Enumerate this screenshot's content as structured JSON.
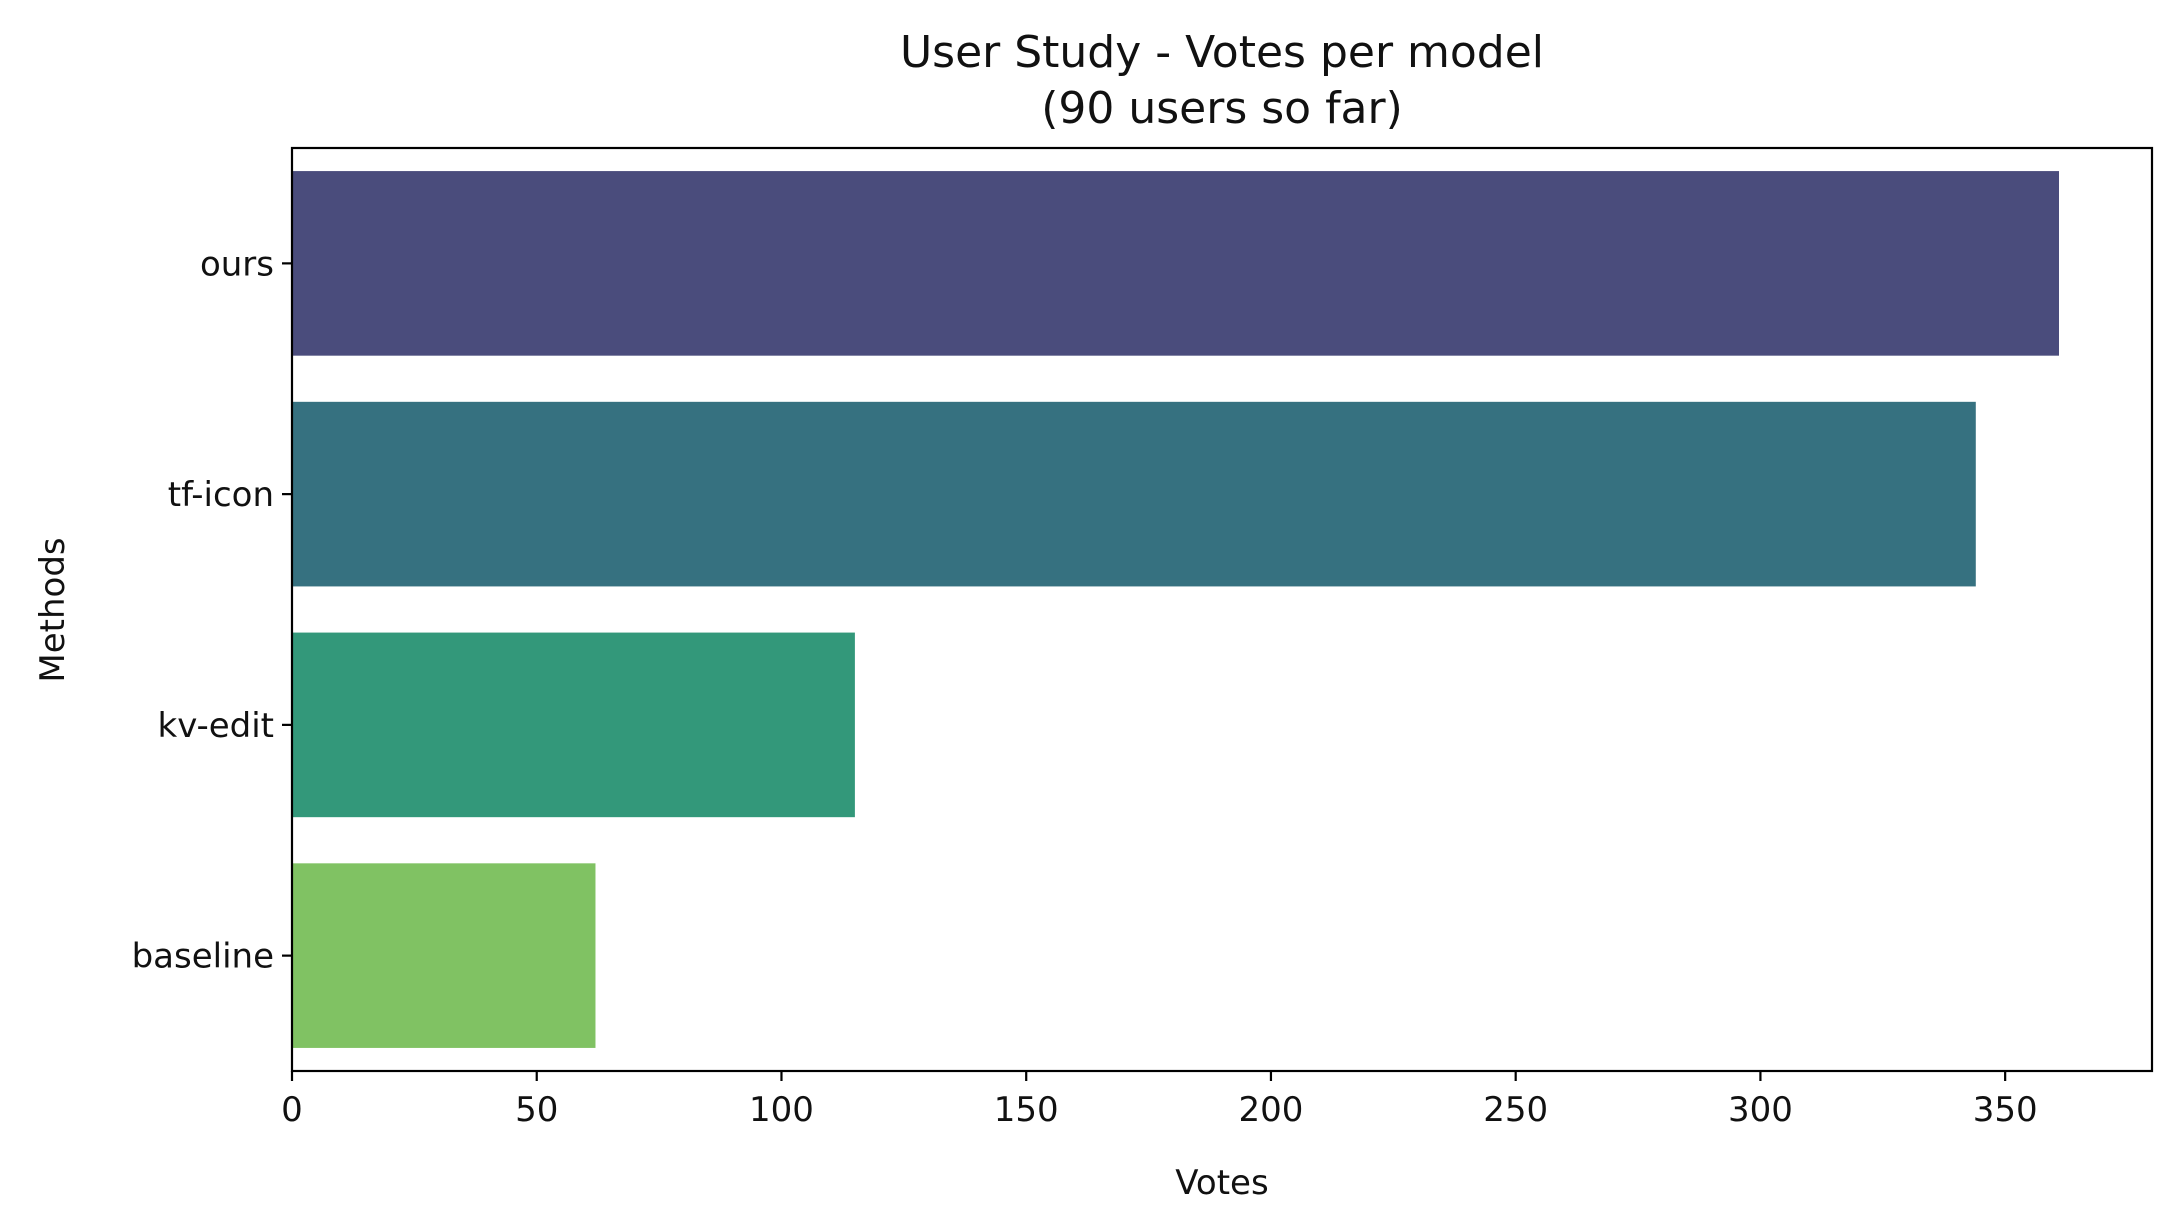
{
  "chart_data": {
    "type": "bar",
    "orientation": "horizontal",
    "title": "User Study - Votes per model",
    "subtitle": "(90 users so far)",
    "xlabel": "Votes",
    "ylabel": "Methods",
    "categories": [
      "ours",
      "tf-icon",
      "kv-edit",
      "baseline"
    ],
    "values": [
      361,
      344,
      115,
      62
    ],
    "colors": [
      "#4a4c7c",
      "#367180",
      "#33987a",
      "#80c263"
    ],
    "xlim": [
      0,
      380
    ],
    "xticks": [
      0,
      50,
      100,
      150,
      200,
      250,
      300,
      350
    ],
    "xtick_labels": [
      "0",
      "50",
      "100",
      "150",
      "200",
      "250",
      "300",
      "350"
    ],
    "grid": false,
    "legend": false
  }
}
